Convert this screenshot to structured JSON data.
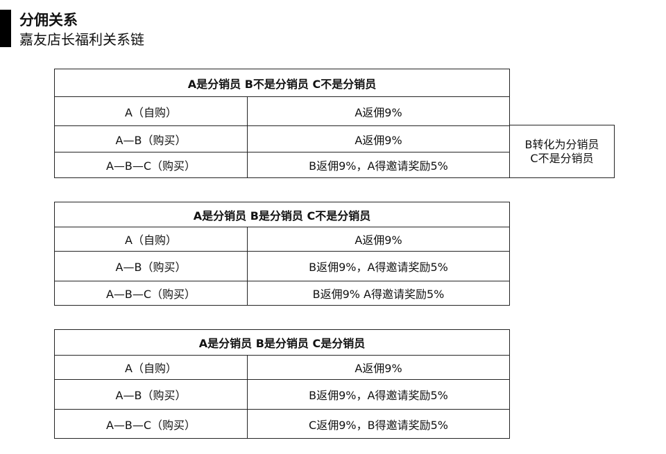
{
  "header": {
    "title": "分佣关系",
    "subtitle": "嘉友店长福利关系链"
  },
  "tables": [
    {
      "heading": "A是分销员 B不是分销员 C不是分销员",
      "rows": [
        [
          "A（自购）",
          "A返佣9%"
        ],
        [
          "A—B（购买）",
          "A返佣9%"
        ],
        [
          "A—B—C（购买）",
          "B返佣9%，A得邀请奖励5%"
        ]
      ],
      "note": [
        "B转化为分销员",
        "C不是分销员"
      ]
    },
    {
      "heading": "A是分销员 B是分销员 C不是分销员",
      "rows": [
        [
          "A（自购）",
          "A返佣9%"
        ],
        [
          "A—B（购买）",
          "B返佣9%，A得邀请奖励5%"
        ],
        [
          "A—B—C（购买）",
          "B返佣9% A得邀请奖励5%"
        ]
      ]
    },
    {
      "heading": "A是分销员 B是分销员 C是分销员",
      "rows": [
        [
          "A（自购）",
          "A返佣9%"
        ],
        [
          "A—B（购买）",
          "B返佣9%，A得邀请奖励5%"
        ],
        [
          "A—B—C（购买）",
          "C返佣9%，B得邀请奖励5%"
        ]
      ]
    }
  ]
}
